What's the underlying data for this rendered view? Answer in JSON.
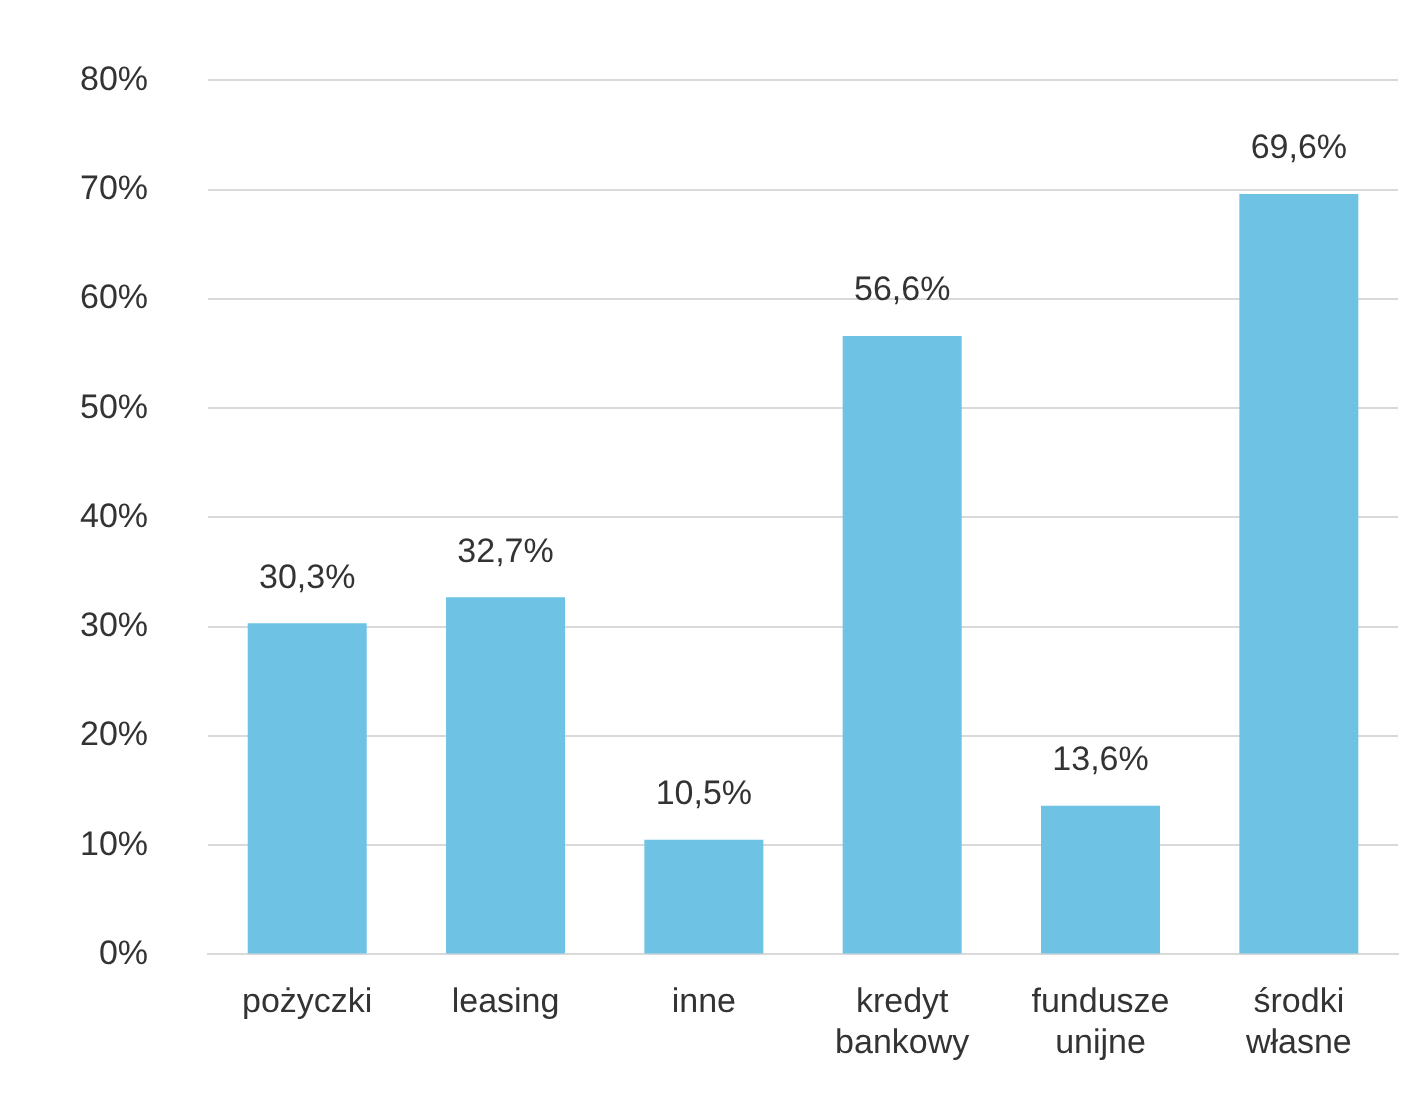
{
  "chart_data": {
    "type": "bar",
    "categories": [
      "pożyczki",
      "leasing",
      "inne",
      "kredyt bankowy",
      "fundusze unijne",
      "środki własne"
    ],
    "values": [
      30.3,
      32.7,
      10.5,
      56.6,
      13.6,
      69.6
    ],
    "value_labels": [
      "30,3%",
      "32,7%",
      "10,5%",
      "56,6%",
      "13,6%",
      "69,6%"
    ],
    "color": "#6ec2e3",
    "ylim": [
      0,
      80
    ],
    "yticks": [
      {
        "value": 0,
        "label": "0%"
      },
      {
        "value": 10,
        "label": "10%"
      },
      {
        "value": 20,
        "label": "20%"
      },
      {
        "value": 30,
        "label": "30%"
      },
      {
        "value": 40,
        "label": "40%"
      },
      {
        "value": 50,
        "label": "50%"
      },
      {
        "value": 60,
        "label": "60%"
      },
      {
        "value": 70,
        "label": "70%"
      },
      {
        "value": 80,
        "label": "80%"
      }
    ],
    "grid": "y"
  }
}
